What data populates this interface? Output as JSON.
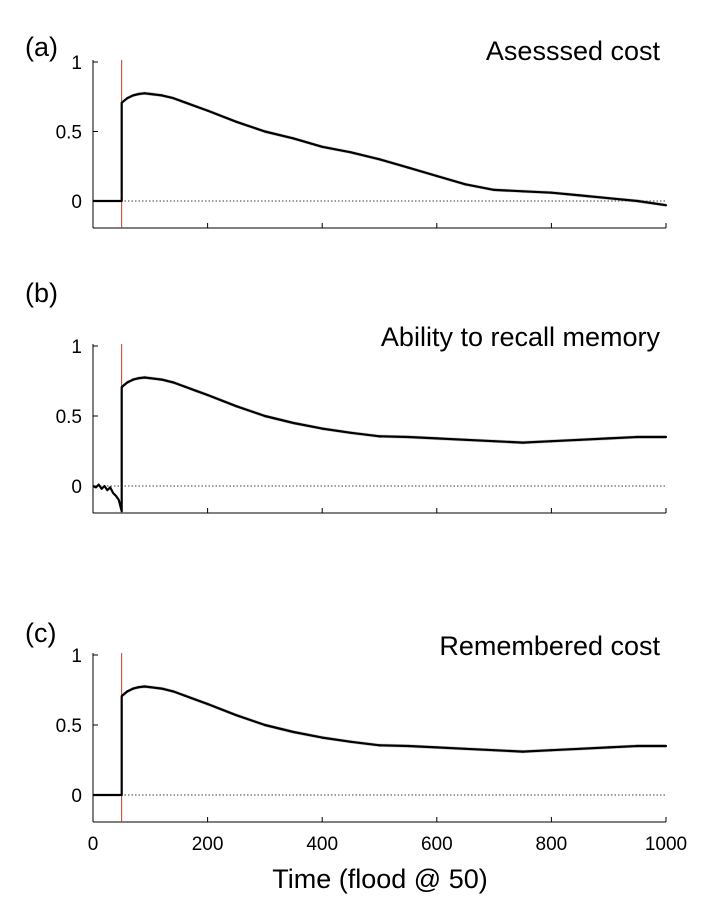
{
  "chart_data": {
    "type": "line",
    "xlabel": "Time (flood @ 50)",
    "xlim": [
      0,
      1000
    ],
    "x_ticks": [
      "0",
      "200",
      "400",
      "600",
      "800",
      "1000"
    ],
    "ylim": [
      -0.2,
      1.0
    ],
    "y_ticks": [
      "0",
      "0.5",
      "1"
    ],
    "event_marker": {
      "x": 50,
      "color": "#c0392b"
    },
    "zero_reference_line": {
      "y": 0,
      "style": "dotted"
    },
    "line_color": "#000000",
    "band_color": "#9a9a9a",
    "panels": [
      {
        "letter": "(a)",
        "title": "Asesssed cost",
        "pre_event": {
          "x": [
            0,
            50
          ],
          "y": [
            0,
            0
          ]
        },
        "series": {
          "x": [
            51,
            60,
            70,
            80,
            90,
            100,
            120,
            140,
            160,
            180,
            200,
            250,
            300,
            350,
            400,
            450,
            500,
            550,
            600,
            650,
            700,
            750,
            800,
            850,
            900,
            950,
            1000
          ],
          "y": [
            0.71,
            0.74,
            0.76,
            0.77,
            0.775,
            0.77,
            0.76,
            0.74,
            0.71,
            0.68,
            0.65,
            0.57,
            0.5,
            0.45,
            0.39,
            0.35,
            0.3,
            0.24,
            0.18,
            0.12,
            0.08,
            0.07,
            0.06,
            0.04,
            0.02,
            0.0,
            -0.03
          ]
        },
        "band_halfwidth": 0.012
      },
      {
        "letter": "(b)",
        "title": "Ability to recall memory",
        "pre_event": {
          "x": [
            0,
            5,
            10,
            15,
            20,
            25,
            30,
            35,
            40,
            45,
            50
          ],
          "y": [
            0.0,
            -0.01,
            0.01,
            -0.02,
            0.0,
            -0.03,
            -0.01,
            -0.05,
            -0.07,
            -0.1,
            -0.18
          ]
        },
        "series": {
          "x": [
            51,
            60,
            70,
            80,
            90,
            100,
            120,
            140,
            160,
            180,
            200,
            250,
            300,
            350,
            400,
            450,
            500,
            550,
            600,
            650,
            700,
            750,
            800,
            850,
            900,
            950,
            1000
          ],
          "y": [
            0.71,
            0.74,
            0.76,
            0.77,
            0.775,
            0.77,
            0.76,
            0.74,
            0.71,
            0.68,
            0.65,
            0.57,
            0.5,
            0.45,
            0.41,
            0.38,
            0.355,
            0.35,
            0.34,
            0.33,
            0.32,
            0.31,
            0.32,
            0.33,
            0.34,
            0.35,
            0.35
          ]
        },
        "band_halfwidth": 0.012
      },
      {
        "letter": "(c)",
        "title": "Remembered cost",
        "pre_event": {
          "x": [
            0,
            50
          ],
          "y": [
            0,
            0
          ]
        },
        "series": {
          "x": [
            51,
            60,
            70,
            80,
            90,
            100,
            120,
            140,
            160,
            180,
            200,
            250,
            300,
            350,
            400,
            450,
            500,
            550,
            600,
            650,
            700,
            750,
            800,
            850,
            900,
            950,
            1000
          ],
          "y": [
            0.71,
            0.74,
            0.76,
            0.77,
            0.775,
            0.77,
            0.76,
            0.74,
            0.71,
            0.68,
            0.65,
            0.57,
            0.5,
            0.45,
            0.41,
            0.38,
            0.355,
            0.35,
            0.34,
            0.33,
            0.32,
            0.31,
            0.32,
            0.33,
            0.34,
            0.35,
            0.35
          ]
        },
        "band_halfwidth": 0.012
      }
    ]
  }
}
